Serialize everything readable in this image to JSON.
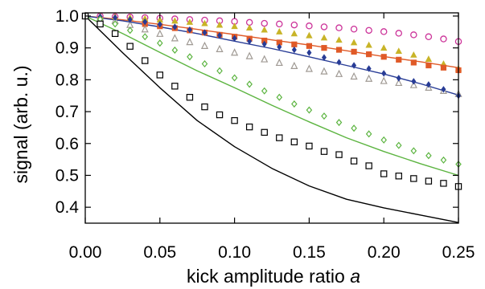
{
  "chart_data": {
    "type": "scatter",
    "title": "",
    "xlabel_prefix": "kick amplitude ratio ",
    "xlabel_var": "a",
    "ylabel": "signal (arb. u.)",
    "xlim": [
      0.0,
      0.25
    ],
    "ylim": [
      0.35,
      1.01
    ],
    "xticks": [
      0.0,
      0.05,
      0.1,
      0.15,
      0.2,
      0.25
    ],
    "xtick_labels": [
      "0.00",
      "0.05",
      "0.10",
      "0.15",
      "0.20",
      "0.25"
    ],
    "yticks": [
      0.4,
      0.5,
      0.6,
      0.7,
      0.8,
      0.9,
      1.0
    ],
    "ytick_labels": [
      "0.4",
      "0.5",
      "0.6",
      "0.7",
      "0.8",
      "0.9",
      "1.0"
    ],
    "grid": false,
    "legend": false,
    "point_series": [
      {
        "marker": "circle-open",
        "color": "#cc3399",
        "x": [
          0.0,
          0.01,
          0.02,
          0.03,
          0.04,
          0.05,
          0.06,
          0.07,
          0.08,
          0.09,
          0.1,
          0.11,
          0.12,
          0.13,
          0.14,
          0.15,
          0.16,
          0.17,
          0.18,
          0.19,
          0.2,
          0.21,
          0.22,
          0.23,
          0.24,
          0.25
        ],
        "y": [
          1.0,
          1.0,
          0.998,
          0.997,
          0.995,
          0.993,
          0.991,
          0.989,
          0.987,
          0.985,
          0.983,
          0.98,
          0.977,
          0.975,
          0.972,
          0.969,
          0.966,
          0.963,
          0.959,
          0.955,
          0.951,
          0.946,
          0.941,
          0.935,
          0.928,
          0.92
        ]
      },
      {
        "marker": "triangle-filled",
        "color": "#c8b428",
        "x": [
          0.0,
          0.01,
          0.02,
          0.03,
          0.04,
          0.05,
          0.06,
          0.07,
          0.08,
          0.09,
          0.1,
          0.11,
          0.12,
          0.13,
          0.14,
          0.15,
          0.16,
          0.17,
          0.18,
          0.19,
          0.2,
          0.21,
          0.22,
          0.23,
          0.24,
          0.25
        ],
        "y": [
          1.0,
          1.0,
          0.998,
          0.995,
          0.992,
          0.988,
          0.985,
          0.981,
          0.977,
          0.972,
          0.968,
          0.963,
          0.957,
          0.951,
          0.945,
          0.939,
          0.932,
          0.925,
          0.917,
          0.909,
          0.9,
          0.89,
          0.878,
          0.865,
          0.85,
          0.835
        ]
      },
      {
        "marker": "square-filled",
        "color": "#e05a28",
        "x": [
          0.04,
          0.05,
          0.06,
          0.07,
          0.08,
          0.09,
          0.1,
          0.11,
          0.12,
          0.13,
          0.14,
          0.15,
          0.16,
          0.17,
          0.18,
          0.19,
          0.2,
          0.21,
          0.22,
          0.23,
          0.24,
          0.25
        ],
        "y": [
          0.975,
          0.968,
          0.962,
          0.955,
          0.948,
          0.941,
          0.935,
          0.929,
          0.923,
          0.917,
          0.911,
          0.906,
          0.9,
          0.894,
          0.888,
          0.88,
          0.872,
          0.863,
          0.854,
          0.845,
          0.838,
          0.83
        ]
      },
      {
        "marker": "triangle-open",
        "color": "#a09a94",
        "x": [
          0.0,
          0.01,
          0.02,
          0.03,
          0.04,
          0.05,
          0.06,
          0.07,
          0.08,
          0.09,
          0.1,
          0.11,
          0.12,
          0.13,
          0.14,
          0.15,
          0.16,
          0.17,
          0.18,
          0.19,
          0.2,
          0.21,
          0.22,
          0.23,
          0.24,
          0.25
        ],
        "y": [
          1.0,
          0.995,
          0.985,
          0.972,
          0.958,
          0.944,
          0.93,
          0.918,
          0.906,
          0.896,
          0.885,
          0.874,
          0.864,
          0.853,
          0.843,
          0.834,
          0.826,
          0.818,
          0.81,
          0.803,
          0.796,
          0.79,
          0.783,
          0.775,
          0.765,
          0.755
        ]
      },
      {
        "marker": "diamond-filled",
        "color": "#283c96",
        "x": [
          0.0,
          0.01,
          0.02,
          0.03,
          0.04,
          0.05,
          0.06,
          0.07,
          0.08,
          0.09,
          0.1,
          0.11,
          0.12,
          0.13,
          0.14,
          0.15,
          0.16,
          0.17,
          0.18,
          0.19,
          0.2,
          0.21,
          0.22,
          0.23,
          0.24,
          0.25
        ],
        "y": [
          1.0,
          0.998,
          0.995,
          0.989,
          0.982,
          0.974,
          0.966,
          0.957,
          0.948,
          0.939,
          0.93,
          0.921,
          0.912,
          0.903,
          0.894,
          0.885,
          0.87,
          0.855,
          0.845,
          0.835,
          0.82,
          0.805,
          0.795,
          0.785,
          0.77,
          0.75
        ]
      },
      {
        "marker": "diamond-open",
        "color": "#5cb440",
        "x": [
          0.0,
          0.01,
          0.02,
          0.03,
          0.04,
          0.05,
          0.06,
          0.07,
          0.08,
          0.09,
          0.1,
          0.11,
          0.12,
          0.13,
          0.14,
          0.15,
          0.16,
          0.17,
          0.18,
          0.19,
          0.2,
          0.21,
          0.22,
          0.23,
          0.24,
          0.25
        ],
        "y": [
          1.0,
          0.99,
          0.975,
          0.955,
          0.935,
          0.915,
          0.893,
          0.872,
          0.85,
          0.828,
          0.806,
          0.786,
          0.765,
          0.745,
          0.724,
          0.705,
          0.686,
          0.666,
          0.648,
          0.63,
          0.611,
          0.594,
          0.577,
          0.562,
          0.548,
          0.535
        ]
      },
      {
        "marker": "square-open",
        "color": "#000000",
        "x": [
          0.0,
          0.01,
          0.02,
          0.03,
          0.04,
          0.05,
          0.06,
          0.07,
          0.08,
          0.09,
          0.1,
          0.11,
          0.12,
          0.13,
          0.14,
          0.15,
          0.16,
          0.17,
          0.18,
          0.19,
          0.2,
          0.21,
          0.22,
          0.23,
          0.24,
          0.25
        ],
        "y": [
          1.0,
          0.975,
          0.945,
          0.905,
          0.86,
          0.815,
          0.78,
          0.745,
          0.715,
          0.69,
          0.672,
          0.652,
          0.635,
          0.618,
          0.605,
          0.592,
          0.575,
          0.565,
          0.545,
          0.53,
          0.505,
          0.498,
          0.49,
          0.482,
          0.475,
          0.465
        ]
      }
    ],
    "line_series": [
      {
        "color": "#e05a28",
        "x": [
          0.0,
          0.025,
          0.05,
          0.075,
          0.1,
          0.125,
          0.15,
          0.175,
          0.2,
          0.225,
          0.25
        ],
        "y": [
          1.0,
          0.988,
          0.974,
          0.958,
          0.942,
          0.925,
          0.909,
          0.891,
          0.873,
          0.856,
          0.838
        ]
      },
      {
        "color": "#283c96",
        "x": [
          0.0,
          0.025,
          0.05,
          0.075,
          0.1,
          0.125,
          0.15,
          0.175,
          0.2,
          0.225,
          0.25
        ],
        "y": [
          1.0,
          0.985,
          0.966,
          0.945,
          0.921,
          0.898,
          0.872,
          0.845,
          0.818,
          0.787,
          0.752
        ]
      },
      {
        "color": "#5cb440",
        "x": [
          0.0,
          0.025,
          0.05,
          0.075,
          0.1,
          0.125,
          0.15,
          0.175,
          0.2,
          0.225,
          0.25
        ],
        "y": [
          1.0,
          0.945,
          0.886,
          0.828,
          0.775,
          0.72,
          0.668,
          0.618,
          0.575,
          0.536,
          0.5
        ]
      },
      {
        "color": "#000000",
        "x": [
          0.0,
          0.025,
          0.05,
          0.075,
          0.1,
          0.125,
          0.15,
          0.175,
          0.2,
          0.225,
          0.25
        ],
        "y": [
          1.0,
          0.885,
          0.775,
          0.672,
          0.59,
          0.522,
          0.467,
          0.425,
          0.398,
          0.375,
          0.352
        ]
      }
    ]
  }
}
